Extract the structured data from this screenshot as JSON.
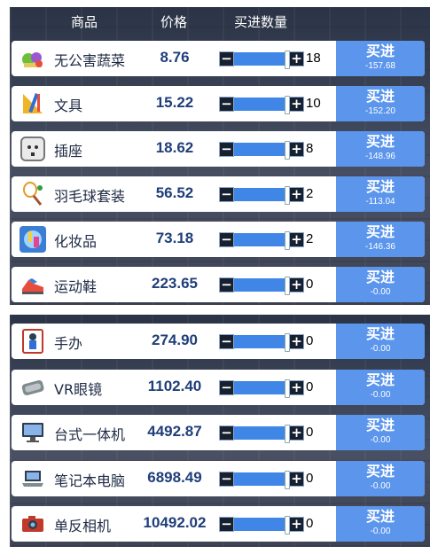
{
  "headers": {
    "item": "商品",
    "price": "价格",
    "qty": "买进数量"
  },
  "buy_label": "买进",
  "rows_top": [
    {
      "icon": "vegetables-icon",
      "name": "无公害蔬菜",
      "price": "8.76",
      "qty": "18",
      "cost": "-157.68",
      "fill": 1.0
    },
    {
      "icon": "stationery-icon",
      "name": "文具",
      "price": "15.22",
      "qty": "10",
      "cost": "-152.20",
      "fill": 1.0
    },
    {
      "icon": "power-socket-icon",
      "name": "插座",
      "price": "18.62",
      "qty": "8",
      "cost": "-148.96",
      "fill": 1.0
    },
    {
      "icon": "badminton-set-icon",
      "name": "羽毛球套装",
      "price": "56.52",
      "qty": "2",
      "cost": "-113.04",
      "fill": 1.0
    },
    {
      "icon": "cosmetics-icon",
      "name": "化妆品",
      "price": "73.18",
      "qty": "2",
      "cost": "-146.36",
      "fill": 1.0
    },
    {
      "icon": "sneakers-icon",
      "name": "运动鞋",
      "price": "223.65",
      "qty": "0",
      "cost": "-0.00",
      "fill": 1.0
    }
  ],
  "rows_bottom": [
    {
      "icon": "figurine-icon",
      "name": "手办",
      "price": "274.90",
      "qty": "0",
      "cost": "-0.00",
      "fill": 1.0
    },
    {
      "icon": "vr-headset-icon",
      "name": "VR眼镜",
      "price": "1102.40",
      "qty": "0",
      "cost": "-0.00",
      "fill": 1.0
    },
    {
      "icon": "desktop-computer-icon",
      "name": "台式一体机",
      "price": "4492.87",
      "qty": "0",
      "cost": "-0.00",
      "fill": 1.0
    },
    {
      "icon": "laptop-icon",
      "name": "笔记本电脑",
      "price": "6898.49",
      "qty": "0",
      "cost": "-0.00",
      "fill": 1.0
    },
    {
      "icon": "camera-icon",
      "name": "单反相机",
      "price": "10492.02",
      "qty": "0",
      "cost": "-0.00",
      "fill": 1.0
    }
  ],
  "stepper": {
    "minus": "−",
    "plus": "+"
  },
  "colors": {
    "accent": "#5b95ec",
    "slider": "#3f86e6",
    "price": "#1f3e7a",
    "panel": "#3a4356"
  }
}
